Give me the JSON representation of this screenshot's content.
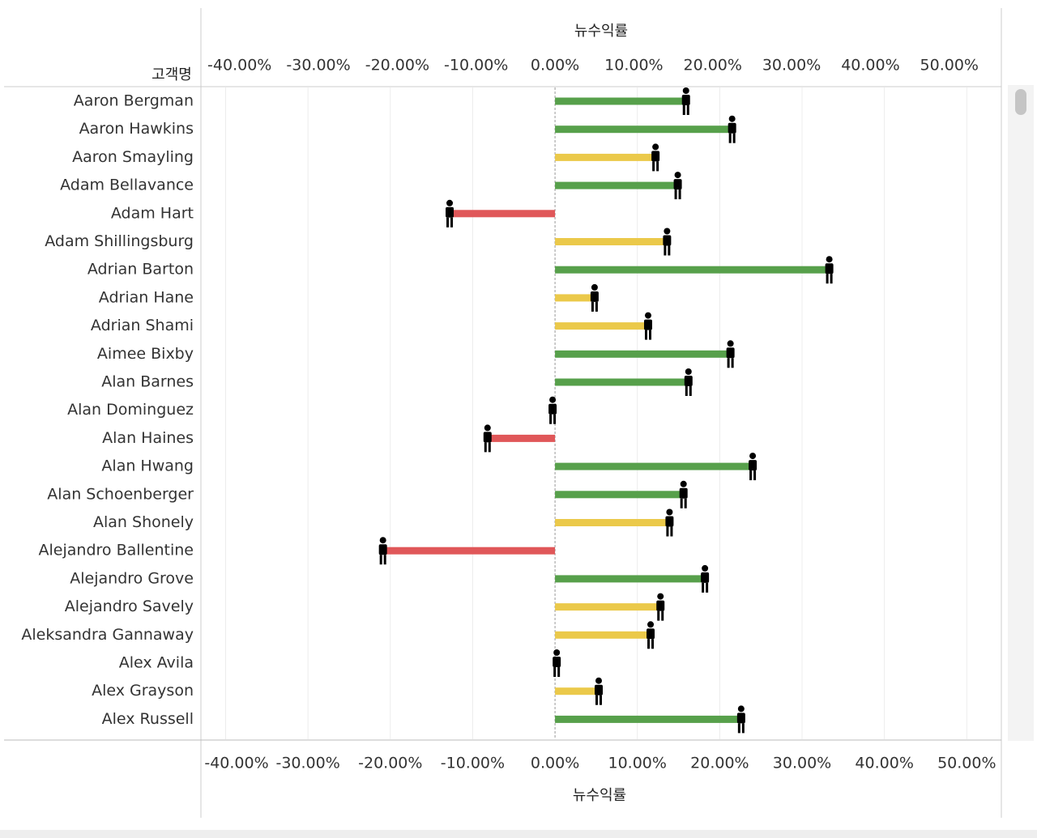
{
  "chart_data": {
    "type": "hbar",
    "xlabel": "뉴수익률",
    "ylabel": "고객명",
    "categories": [
      "Aaron Bergman",
      "Aaron Hawkins",
      "Aaron Smayling",
      "Adam Bellavance",
      "Adam Hart",
      "Adam Shillingsburg",
      "Adrian Barton",
      "Adrian Hane",
      "Adrian Shami",
      "Aimee Bixby",
      "Alan Barnes",
      "Alan Dominguez",
      "Alan Haines",
      "Alan Hwang",
      "Alan Schoenberger",
      "Alan Shonely",
      "Alejandro Ballentine",
      "Alejandro Grove",
      "Alejandro Savely",
      "Aleksandra Gannaway",
      "Alex Avila",
      "Alex Grayson",
      "Alex Russell"
    ],
    "values": [
      16.2,
      21.8,
      12.5,
      15.2,
      -12.5,
      13.9,
      33.6,
      5.1,
      11.6,
      21.6,
      16.5,
      0,
      -7.9,
      24.3,
      15.9,
      14.2,
      -20.6,
      18.5,
      13.1,
      11.9,
      0.5,
      5.6,
      22.9
    ],
    "colors": [
      "#57a04b",
      "#57a04b",
      "#ebc94a",
      "#57a04b",
      "#e05759",
      "#ebc94a",
      "#57a04b",
      "#ebc94a",
      "#ebc94a",
      "#57a04b",
      "#57a04b",
      "#e05759",
      "#e05759",
      "#57a04b",
      "#57a04b",
      "#ebc94a",
      "#e05759",
      "#57a04b",
      "#ebc94a",
      "#ebc94a",
      "#e05759",
      "#ebc94a",
      "#57a04b"
    ],
    "xlim": [
      -43,
      54.2
    ],
    "xticks": [
      {
        "value": -40,
        "label": "-40.00%"
      },
      {
        "value": -30,
        "label": "-30.00%"
      },
      {
        "value": -20,
        "label": "-20.00%"
      },
      {
        "value": -10,
        "label": "-10.00%"
      },
      {
        "value": 0,
        "label": "0.00%"
      },
      {
        "value": 10,
        "label": "10.00%"
      },
      {
        "value": 20,
        "label": "20.00%"
      },
      {
        "value": 30,
        "label": "30.00%"
      },
      {
        "value": 40,
        "label": "40.00%"
      },
      {
        "value": 50,
        "label": "50.00%"
      }
    ],
    "x2lim": [
      -44.9,
      56.6
    ],
    "x2ticks": [
      {
        "value": -40,
        "label": "-40.00%"
      },
      {
        "value": -30,
        "label": "-30.00%"
      },
      {
        "value": -20,
        "label": "-20.00%"
      },
      {
        "value": -10,
        "label": "-10.00%"
      },
      {
        "value": 0,
        "label": "0.00%"
      },
      {
        "value": 10,
        "label": "10.00%"
      },
      {
        "value": 20,
        "label": "20.00%"
      },
      {
        "value": 30,
        "label": "30.00%"
      },
      {
        "value": 40,
        "label": "40.00%"
      },
      {
        "value": 50,
        "label": "50.00%"
      }
    ],
    "grid": true
  }
}
